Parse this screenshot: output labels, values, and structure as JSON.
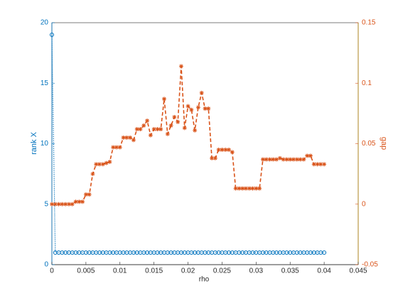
{
  "chart_data": {
    "type": "line",
    "xlabel": "rho",
    "ylabel": "rank X",
    "y2label": "gap",
    "x": [
      0,
      0.0005,
      0.001,
      0.0015,
      0.002,
      0.0025,
      0.003,
      0.0035,
      0.004,
      0.0045,
      0.005,
      0.0055,
      0.006,
      0.0065,
      0.007,
      0.0075,
      0.008,
      0.0085,
      0.009,
      0.0095,
      0.01,
      0.0105,
      0.011,
      0.0115,
      0.012,
      0.0125,
      0.013,
      0.0135,
      0.014,
      0.0145,
      0.015,
      0.0155,
      0.016,
      0.0165,
      0.017,
      0.0175,
      0.018,
      0.0185,
      0.019,
      0.0195,
      0.02,
      0.0205,
      0.021,
      0.0215,
      0.022,
      0.0225,
      0.023,
      0.0235,
      0.024,
      0.0245,
      0.025,
      0.0255,
      0.026,
      0.0265,
      0.027,
      0.0275,
      0.028,
      0.0285,
      0.029,
      0.0295,
      0.03,
      0.0305,
      0.031,
      0.0315,
      0.032,
      0.0325,
      0.033,
      0.0335,
      0.034,
      0.0345,
      0.035,
      0.0355,
      0.036,
      0.0365,
      0.037,
      0.0375,
      0.038,
      0.0385,
      0.039,
      0.0395,
      0.04
    ],
    "series": [
      {
        "name": "rank X",
        "color": "#0072bd",
        "values": [
          19,
          1,
          1,
          1,
          1,
          1,
          1,
          1,
          1,
          1,
          1,
          1,
          1,
          1,
          1,
          1,
          1,
          1,
          1,
          1,
          1,
          1,
          1,
          1,
          1,
          1,
          1,
          1,
          1,
          1,
          1,
          1,
          1,
          1,
          1,
          1,
          1,
          1,
          1,
          1,
          1,
          1,
          1,
          1,
          1,
          1,
          1,
          1,
          1,
          1,
          1,
          1,
          1,
          1,
          1,
          1,
          1,
          1,
          1,
          1,
          1,
          1,
          1,
          1,
          1,
          1,
          1,
          1,
          1,
          1,
          1,
          1,
          1,
          1,
          1,
          1,
          1,
          1,
          1,
          1,
          1
        ]
      },
      {
        "name": "gap",
        "color": "#d95319",
        "axis": "y2",
        "values": [
          0,
          0,
          0,
          0,
          0,
          0,
          0,
          0.002,
          0.002,
          0.002,
          0.008,
          0.008,
          0.025,
          0.033,
          0.033,
          0.033,
          0.034,
          0.035,
          0.047,
          0.047,
          0.047,
          0.055,
          0.055,
          0.055,
          0.053,
          0.062,
          0.062,
          0.065,
          0.069,
          0.057,
          0.062,
          0.062,
          0.062,
          0.087,
          0.058,
          0.065,
          0.072,
          0.068,
          0.114,
          0.063,
          0.081,
          0.078,
          0.061,
          0.08,
          0.092,
          0.079,
          0.079,
          0.038,
          0.038,
          0.045,
          0.045,
          0.045,
          0.045,
          0.043,
          0.013,
          0.013,
          0.013,
          0.013,
          0.013,
          0.013,
          0.013,
          0.013,
          0.037,
          0.037,
          0.037,
          0.037,
          0.037,
          0.038,
          0.037,
          0.037,
          0.037,
          0.037,
          0.037,
          0.037,
          0.037,
          0.04,
          0.04,
          0.033,
          0.033,
          0.033,
          0.033
        ]
      }
    ],
    "xlim": [
      0,
      0.045
    ],
    "xticks": [
      0,
      0.005,
      0.01,
      0.015,
      0.02,
      0.025,
      0.03,
      0.035,
      0.04,
      0.045
    ],
    "ylim": [
      0,
      20
    ],
    "yticks": [
      0,
      5,
      10,
      15,
      20
    ],
    "y2lim": [
      -0.05,
      0.15
    ],
    "y2ticks": [
      -0.05,
      0,
      0.05,
      0.1,
      0.15
    ]
  }
}
